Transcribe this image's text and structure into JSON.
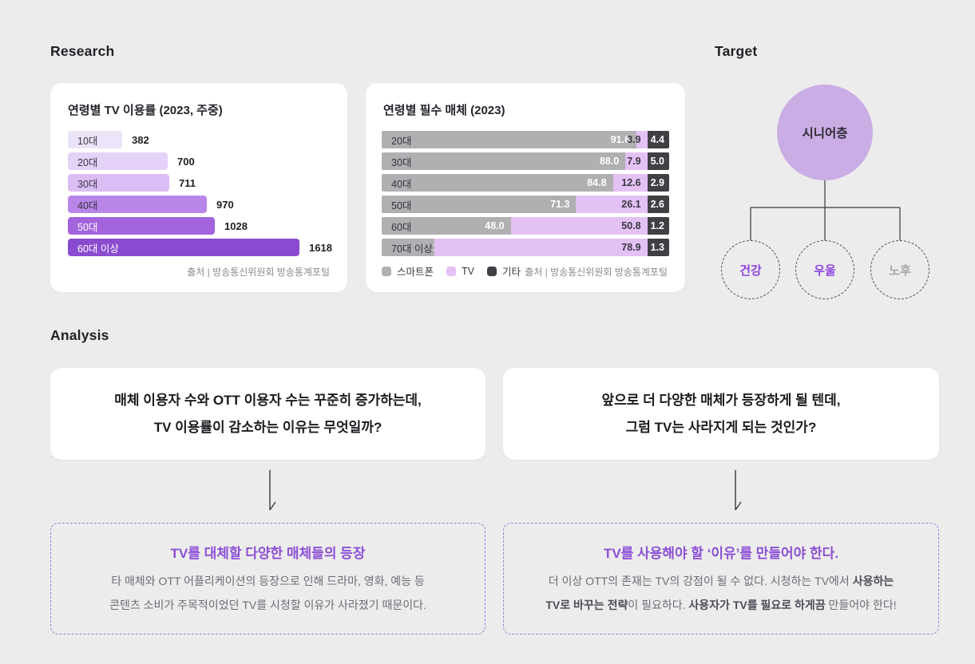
{
  "headings": {
    "research": "Research",
    "target": "Target",
    "analysis": "Analysis"
  },
  "chart1": {
    "title": "연령별 TV 이용률 (2023, 주중)",
    "source": "출처 | 방송통신위원회 방송통계포털",
    "max_value": 1618,
    "bars": [
      {
        "label": "10대",
        "value": 382,
        "color": "#ece4f8",
        "label_color": "#3c3744"
      },
      {
        "label": "20대",
        "value": 700,
        "color": "#e5d2f8",
        "label_color": "#3c3744"
      },
      {
        "label": "30대",
        "value": 711,
        "color": "#d9bdf4",
        "label_color": "#3c3744"
      },
      {
        "label": "40대",
        "value": 970,
        "color": "#b886e9",
        "label_color": "#3c3744"
      },
      {
        "label": "50대",
        "value": 1028,
        "color": "#a263dd",
        "label_color": "#ffffff"
      },
      {
        "label": "60대 이상",
        "value": 1618,
        "color": "#8a4bd0",
        "label_color": "#ffffff"
      }
    ]
  },
  "chart2": {
    "title": "연령별 필수 매체 (2023)",
    "source": "출처 | 방송통신위원회 방송통계포털",
    "colors": {
      "smartphone": "#b0afb2",
      "tv": "#e3c1f5",
      "etc": "#413e44"
    },
    "legend": [
      {
        "label": "스마트폰",
        "key": "smartphone"
      },
      {
        "label": "TV",
        "key": "tv"
      },
      {
        "label": "기타",
        "key": "etc"
      }
    ],
    "rows": [
      {
        "label": "20대",
        "smartphone": "91.6",
        "tv": "3.9",
        "etc": "4.4"
      },
      {
        "label": "30대",
        "smartphone": "88.0",
        "tv": "7.9",
        "etc": "5.0"
      },
      {
        "label": "40대",
        "smartphone": "84.8",
        "tv": "12.6",
        "etc": "2.9"
      },
      {
        "label": "50대",
        "smartphone": "71.3",
        "tv": "26.1",
        "etc": "2.6"
      },
      {
        "label": "60대",
        "smartphone": "48.0",
        "tv": "50.8",
        "etc": "1.2"
      },
      {
        "label": "70대 이상",
        "smartphone": "19.6",
        "tv": "78.9",
        "etc": "1.3"
      }
    ]
  },
  "target": {
    "root": {
      "label": "시니어층",
      "color": "#c9ade4"
    },
    "children": [
      {
        "label": "건강",
        "color": "#8f46e0"
      },
      {
        "label": "우울",
        "color": "#8f46e0"
      },
      {
        "label": "노후",
        "color": "#a6a4a9"
      }
    ]
  },
  "analysis": {
    "questions": [
      {
        "lines": [
          "매체 이용자 수와 OTT 이용자 수는 꾸준히 증가하는데,",
          "TV 이용률이 감소하는 이유는 무엇일까?"
        ]
      },
      {
        "lines": [
          "앞으로 더 다양한 매체가 등장하게 될 텐데,",
          "그럼 TV는 사라지게 되는 것인가?"
        ]
      }
    ],
    "conclusions": [
      {
        "title": "TV를 대체할 다양한 매체들의 등장",
        "lines": [
          [
            {
              "t": "타 매체와 OTT 어플리케이션의 등장으로 인해 드라마, 영화, 예능 등",
              "b": false
            }
          ],
          [
            {
              "t": "콘텐츠 소비가 주목적이었던 TV를 시청할 이유가 사라졌기 때문이다.",
              "b": false
            }
          ]
        ]
      },
      {
        "title": "TV를 사용해야 할 ‘이유’를 만들어야 한다.",
        "lines": [
          [
            {
              "t": "더 이상 OTT의 존재는 TV의 강점이 될 수 없다. 시청하는 TV에서 ",
              "b": false
            },
            {
              "t": "사용하는",
              "b": true
            }
          ],
          [
            {
              "t": "TV로 바꾸는 전략",
              "b": true
            },
            {
              "t": "이 필요하다. ",
              "b": false
            },
            {
              "t": "사용자가 TV를 필요로 하게끔",
              "b": true
            },
            {
              "t": " 만들어야 한다!",
              "b": false
            }
          ]
        ]
      }
    ]
  },
  "chart_data": [
    {
      "type": "bar",
      "orientation": "horizontal",
      "title": "연령별 TV 이용률 (2023, 주중)",
      "categories": [
        "10대",
        "20대",
        "30대",
        "40대",
        "50대",
        "60대 이상"
      ],
      "values": [
        382,
        700,
        711,
        970,
        1028,
        1618
      ],
      "xlabel": "",
      "ylabel": "",
      "grid": false,
      "source": "출처 | 방송통신위원회 방송통계포털"
    },
    {
      "type": "bar",
      "orientation": "horizontal",
      "stacked": true,
      "unit": "percent",
      "title": "연령별 필수 매체 (2023)",
      "categories": [
        "20대",
        "30대",
        "40대",
        "50대",
        "60대",
        "70대 이상"
      ],
      "series": [
        {
          "name": "스마트폰",
          "values": [
            91.6,
            88.0,
            84.8,
            71.3,
            48.0,
            19.6
          ]
        },
        {
          "name": "TV",
          "values": [
            3.9,
            7.9,
            12.6,
            26.1,
            50.8,
            78.9
          ]
        },
        {
          "name": "기타",
          "values": [
            4.4,
            5.0,
            2.9,
            2.6,
            1.2,
            1.3
          ]
        }
      ],
      "legend_position": "bottom-left",
      "grid": false,
      "source": "출처 | 방송통신위원회 방송통계포털"
    }
  ]
}
